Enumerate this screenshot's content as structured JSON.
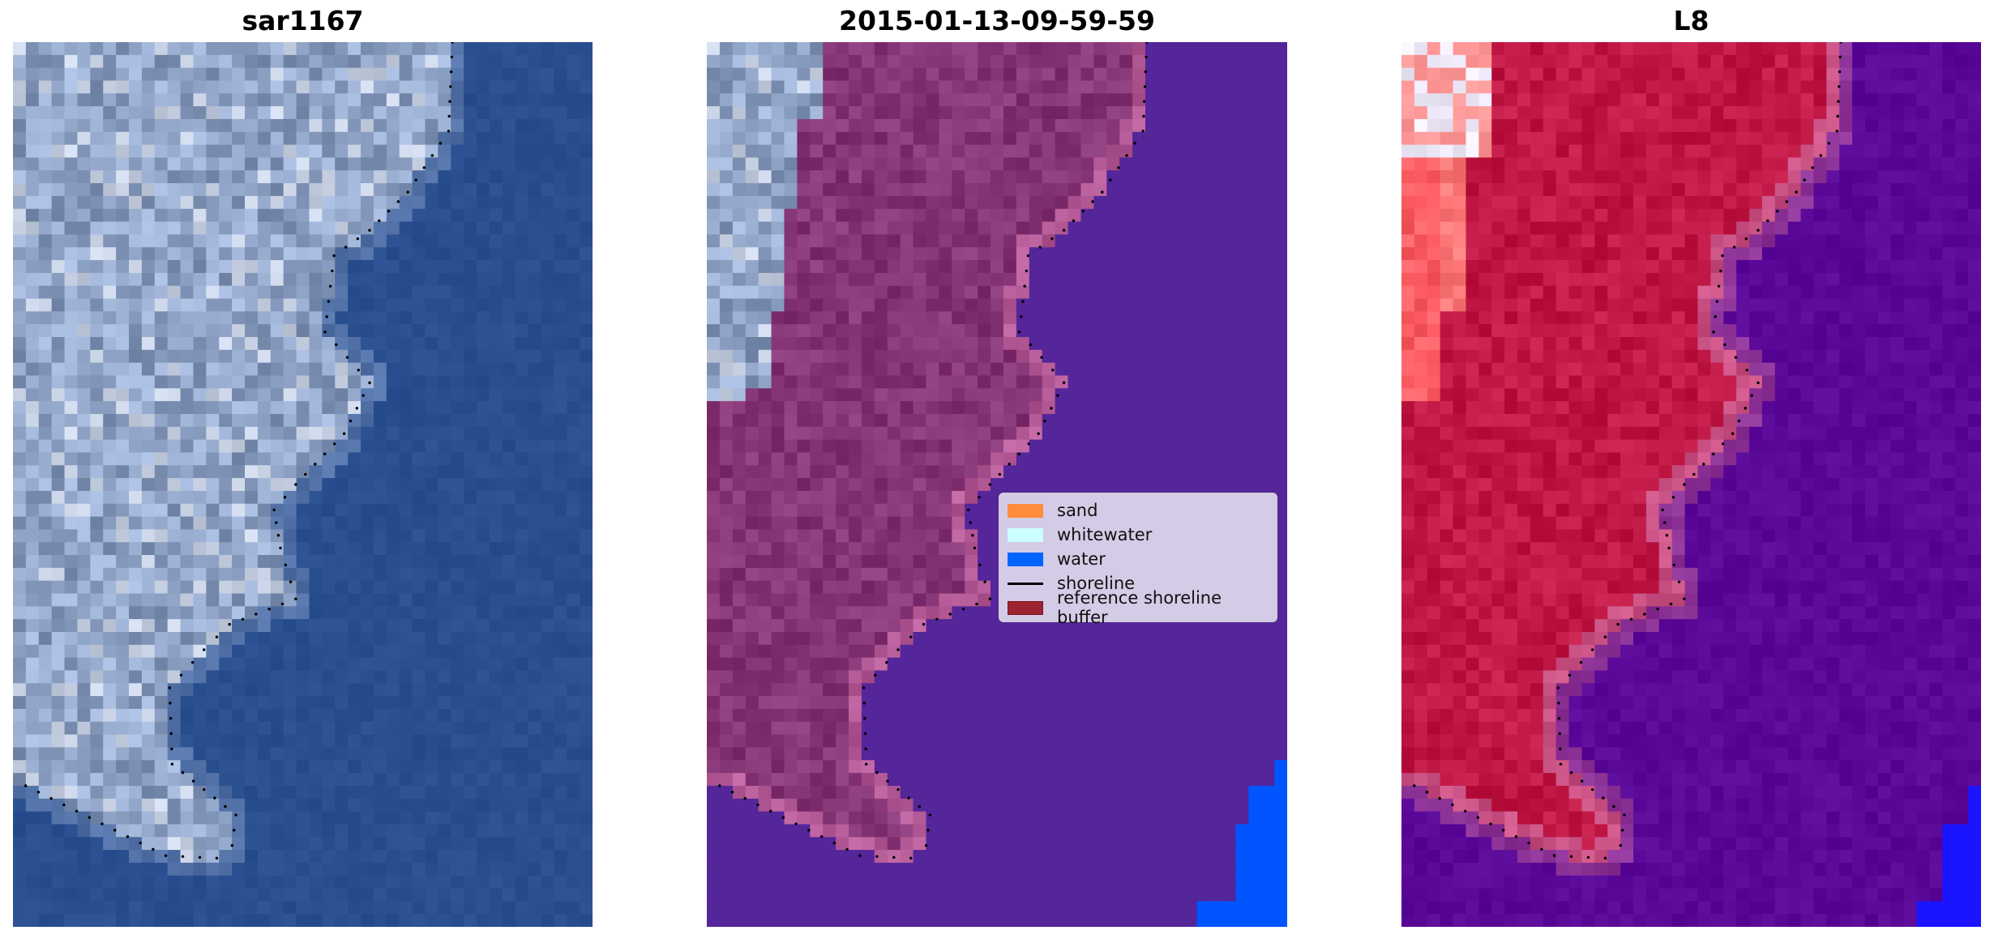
{
  "panels": [
    {
      "title": "sar1167"
    },
    {
      "title": "2015-01-13-09-59-59"
    },
    {
      "title": "L8"
    }
  ],
  "legend": {
    "items": [
      {
        "label": "sand",
        "color": "#ff8c3a",
        "kind": "patch"
      },
      {
        "label": "whitewater",
        "color": "#ccffff",
        "kind": "patch"
      },
      {
        "label": "water",
        "color": "#0064ff",
        "kind": "patch"
      },
      {
        "label": "shoreline",
        "color": "#000000",
        "kind": "line"
      },
      {
        "label": "reference shoreline buffer",
        "color": "#9b2430",
        "kind": "patch"
      }
    ]
  },
  "colors": {
    "rgb_water": "#2a4f90",
    "rgb_land": "#8fa3c6",
    "class_land": "#853575",
    "class_water": "#55259a",
    "class_water_pixel": "#0055ff",
    "ndwi_land": "#c01845",
    "ndwi_water": "#5a0898"
  }
}
